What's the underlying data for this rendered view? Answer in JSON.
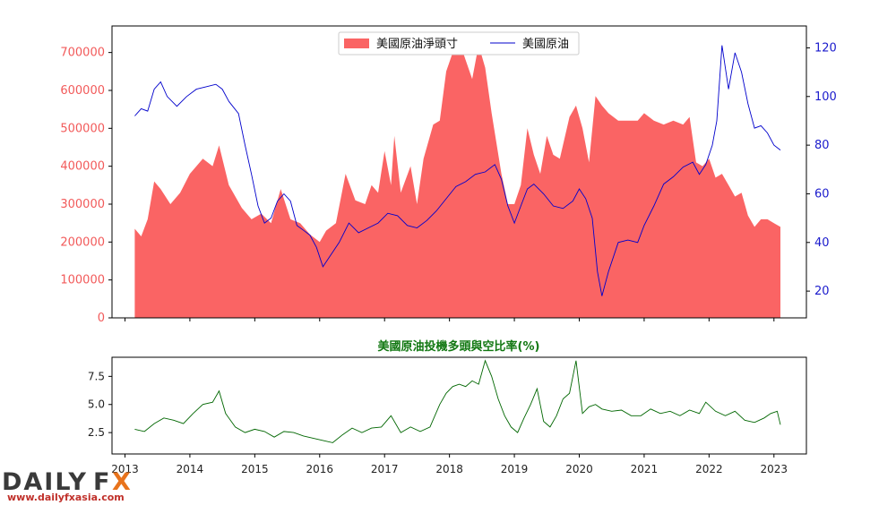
{
  "colors": {
    "net_positions": "#fa6464",
    "price": "#0000cc",
    "ratio": "#006600",
    "left_tick": "#f25a5a",
    "right_tick": "#1a1acc",
    "subtitle": "#117711",
    "logo_dark": "#3a3a3a",
    "logo_accent": "#e8731c",
    "logo_url": "#c0302a"
  },
  "brand": {
    "logo_part1": "DAILY",
    "logo_part2": "F",
    "logo_part3": "X",
    "url": "www.dailyfxasia.com"
  },
  "chart_data": [
    {
      "type": "area",
      "title": "",
      "legend": {
        "placement": "top-center",
        "entries": [
          "美國原油淨頭寸",
          "美國原油"
        ]
      },
      "x_ticks": [
        "2013",
        "2014",
        "2015",
        "2016",
        "2017",
        "2018",
        "2019",
        "2020",
        "2021",
        "2022",
        "2023"
      ],
      "y_left_ticks": [
        "0",
        "100000",
        "200000",
        "300000",
        "400000",
        "500000",
        "600000",
        "700000"
      ],
      "y_left_range": [
        0,
        770000
      ],
      "y_right_ticks": [
        "20",
        "40",
        "60",
        "80",
        "100",
        "120"
      ],
      "y_right_range": [
        9,
        129
      ],
      "x_range": [
        2012.8,
        2023.5
      ],
      "series": [
        {
          "name": "美國原油淨頭寸",
          "type": "area",
          "axis": "left",
          "x": [
            2013.15,
            2013.25,
            2013.35,
            2013.45,
            2013.55,
            2013.7,
            2013.85,
            2014.0,
            2014.2,
            2014.35,
            2014.45,
            2014.6,
            2014.8,
            2014.95,
            2015.1,
            2015.25,
            2015.4,
            2015.55,
            2015.7,
            2015.85,
            2016.0,
            2016.1,
            2016.25,
            2016.4,
            2016.55,
            2016.7,
            2016.8,
            2016.9,
            2017.0,
            2017.1,
            2017.15,
            2017.25,
            2017.4,
            2017.5,
            2017.6,
            2017.75,
            2017.85,
            2017.95,
            2018.05,
            2018.15,
            2018.25,
            2018.35,
            2018.45,
            2018.55,
            2018.65,
            2018.8,
            2018.9,
            2019.0,
            2019.1,
            2019.2,
            2019.3,
            2019.4,
            2019.5,
            2019.6,
            2019.7,
            2019.85,
            2019.95,
            2020.05,
            2020.15,
            2020.25,
            2020.35,
            2020.45,
            2020.6,
            2020.75,
            2020.9,
            2021.0,
            2021.15,
            2021.3,
            2021.45,
            2021.6,
            2021.7,
            2021.8,
            2021.9,
            2022.0,
            2022.1,
            2022.2,
            2022.3,
            2022.4,
            2022.5,
            2022.6,
            2022.7,
            2022.8,
            2022.9,
            2023.0,
            2023.1
          ],
          "values": [
            235000,
            215000,
            260000,
            360000,
            340000,
            300000,
            330000,
            380000,
            420000,
            400000,
            455000,
            350000,
            290000,
            260000,
            275000,
            250000,
            340000,
            260000,
            250000,
            220000,
            200000,
            230000,
            250000,
            380000,
            310000,
            300000,
            350000,
            330000,
            440000,
            350000,
            480000,
            330000,
            400000,
            300000,
            420000,
            510000,
            520000,
            650000,
            700000,
            730000,
            680000,
            630000,
            720000,
            660000,
            540000,
            380000,
            300000,
            300000,
            350000,
            500000,
            430000,
            380000,
            480000,
            430000,
            420000,
            530000,
            560000,
            500000,
            410000,
            585000,
            560000,
            540000,
            520000,
            520000,
            520000,
            540000,
            520000,
            510000,
            520000,
            510000,
            530000,
            410000,
            400000,
            420000,
            370000,
            380000,
            350000,
            320000,
            330000,
            270000,
            240000,
            260000,
            260000,
            250000,
            240000
          ]
        },
        {
          "name": "美國原油",
          "type": "line",
          "axis": "right",
          "x": [
            2013.15,
            2013.25,
            2013.35,
            2013.45,
            2013.55,
            2013.65,
            2013.8,
            2013.95,
            2014.1,
            2014.25,
            2014.4,
            2014.5,
            2014.6,
            2014.75,
            2014.85,
            2014.95,
            2015.05,
            2015.15,
            2015.25,
            2015.35,
            2015.45,
            2015.55,
            2015.65,
            2015.75,
            2015.85,
            2015.95,
            2016.05,
            2016.15,
            2016.3,
            2016.45,
            2016.6,
            2016.75,
            2016.9,
            2017.05,
            2017.2,
            2017.35,
            2017.5,
            2017.65,
            2017.8,
            2017.95,
            2018.1,
            2018.25,
            2018.4,
            2018.55,
            2018.7,
            2018.8,
            2018.9,
            2019.0,
            2019.1,
            2019.2,
            2019.3,
            2019.45,
            2019.6,
            2019.75,
            2019.9,
            2020.0,
            2020.1,
            2020.2,
            2020.28,
            2020.35,
            2020.45,
            2020.6,
            2020.75,
            2020.9,
            2021.0,
            2021.15,
            2021.3,
            2021.45,
            2021.6,
            2021.75,
            2021.85,
            2021.95,
            2022.05,
            2022.12,
            2022.2,
            2022.3,
            2022.4,
            2022.5,
            2022.6,
            2022.7,
            2022.8,
            2022.9,
            2023.0,
            2023.1
          ],
          "values": [
            92,
            95,
            94,
            103,
            106,
            100,
            96,
            100,
            103,
            104,
            105,
            103,
            98,
            93,
            80,
            68,
            55,
            48,
            50,
            57,
            60,
            57,
            47,
            45,
            43,
            38,
            30,
            34,
            40,
            48,
            44,
            46,
            48,
            52,
            51,
            47,
            46,
            49,
            53,
            58,
            63,
            65,
            68,
            69,
            72,
            66,
            55,
            48,
            55,
            62,
            64,
            60,
            55,
            54,
            57,
            62,
            58,
            50,
            28,
            18,
            28,
            40,
            41,
            40,
            47,
            55,
            64,
            67,
            71,
            73,
            68,
            72,
            80,
            90,
            121,
            103,
            118,
            110,
            97,
            87,
            88,
            85,
            80,
            78
          ]
        }
      ]
    },
    {
      "type": "line",
      "title": "美國原油投機多頭與空比率(%)",
      "x_ticks": [
        "2013",
        "2014",
        "2015",
        "2016",
        "2017",
        "2018",
        "2019",
        "2020",
        "2021",
        "2022",
        "2023"
      ],
      "y_ticks": [
        "2.5",
        "5.0",
        "7.5"
      ],
      "y_range": [
        0.6,
        9.2
      ],
      "x_range": [
        2012.8,
        2023.5
      ],
      "series": [
        {
          "name": "",
          "x": [
            2013.15,
            2013.3,
            2013.45,
            2013.6,
            2013.75,
            2013.9,
            2014.05,
            2014.2,
            2014.35,
            2014.45,
            2014.55,
            2014.7,
            2014.85,
            2015.0,
            2015.15,
            2015.3,
            2015.45,
            2015.6,
            2015.75,
            2015.9,
            2016.05,
            2016.2,
            2016.35,
            2016.5,
            2016.65,
            2016.8,
            2016.95,
            2017.1,
            2017.25,
            2017.4,
            2017.55,
            2017.7,
            2017.85,
            2017.95,
            2018.05,
            2018.15,
            2018.25,
            2018.35,
            2018.45,
            2018.55,
            2018.65,
            2018.75,
            2018.85,
            2018.95,
            2019.05,
            2019.15,
            2019.25,
            2019.35,
            2019.45,
            2019.55,
            2019.65,
            2019.75,
            2019.85,
            2019.95,
            2020.05,
            2020.15,
            2020.25,
            2020.35,
            2020.5,
            2020.65,
            2020.8,
            2020.95,
            2021.1,
            2021.25,
            2021.4,
            2021.55,
            2021.7,
            2021.85,
            2021.95,
            2022.1,
            2022.25,
            2022.4,
            2022.55,
            2022.7,
            2022.85,
            2022.95,
            2023.05,
            2023.1
          ],
          "values": [
            2.8,
            2.6,
            3.3,
            3.8,
            3.6,
            3.3,
            4.2,
            5.0,
            5.2,
            6.2,
            4.2,
            3.0,
            2.5,
            2.8,
            2.6,
            2.1,
            2.6,
            2.5,
            2.2,
            2.0,
            1.8,
            1.6,
            2.3,
            2.9,
            2.5,
            2.9,
            3.0,
            4.0,
            2.5,
            3.0,
            2.6,
            3.0,
            5.0,
            6.0,
            6.6,
            6.8,
            6.6,
            7.1,
            6.8,
            8.9,
            7.5,
            5.5,
            4.0,
            3.0,
            2.5,
            3.8,
            5.0,
            6.4,
            3.5,
            3.0,
            4.0,
            5.5,
            6.0,
            8.9,
            4.2,
            4.8,
            5.0,
            4.6,
            4.4,
            4.5,
            4.0,
            4.0,
            4.6,
            4.2,
            4.4,
            4.0,
            4.5,
            4.2,
            5.2,
            4.4,
            4.0,
            4.4,
            3.6,
            3.4,
            3.8,
            4.2,
            4.4,
            3.2
          ]
        }
      ]
    }
  ]
}
